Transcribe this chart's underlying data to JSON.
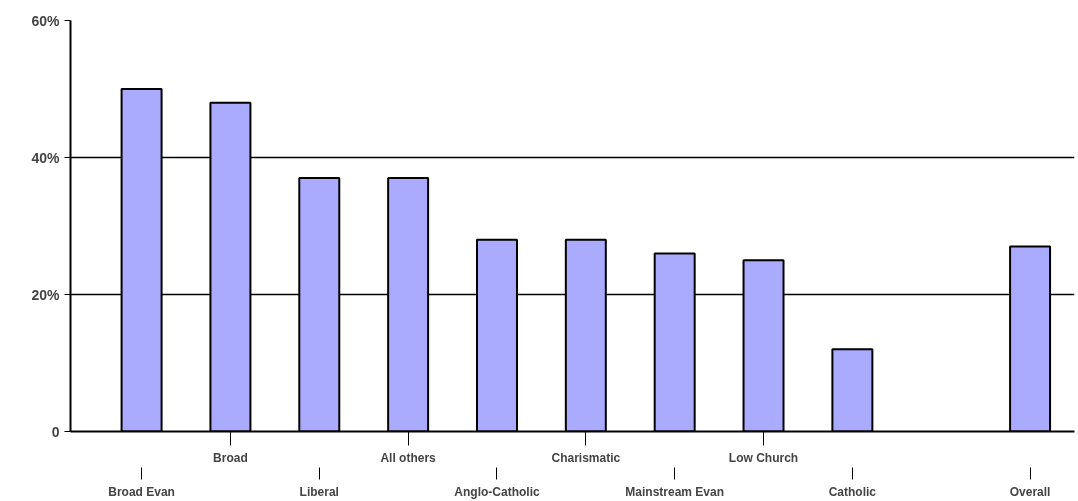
{
  "chart_data": {
    "type": "bar",
    "categories": [
      "Broad Evan",
      "Broad",
      "Liberal",
      "All others",
      "Anglo-Catholic",
      "Charismatic",
      "Mainstream Evan",
      "Low Church",
      "Catholic",
      null,
      "Overall"
    ],
    "values": [
      50,
      48,
      37,
      37,
      28,
      28,
      26,
      25,
      12,
      null,
      27
    ],
    "color": "#aaaaff",
    "ylim": [
      0,
      60
    ],
    "yticks": [
      0,
      {
        "value": 20,
        "label": "20%"
      },
      {
        "value": 40,
        "label": "40%"
      },
      {
        "value": 60,
        "label": "60%"
      }
    ],
    "grid": "y",
    "legend": false
  }
}
